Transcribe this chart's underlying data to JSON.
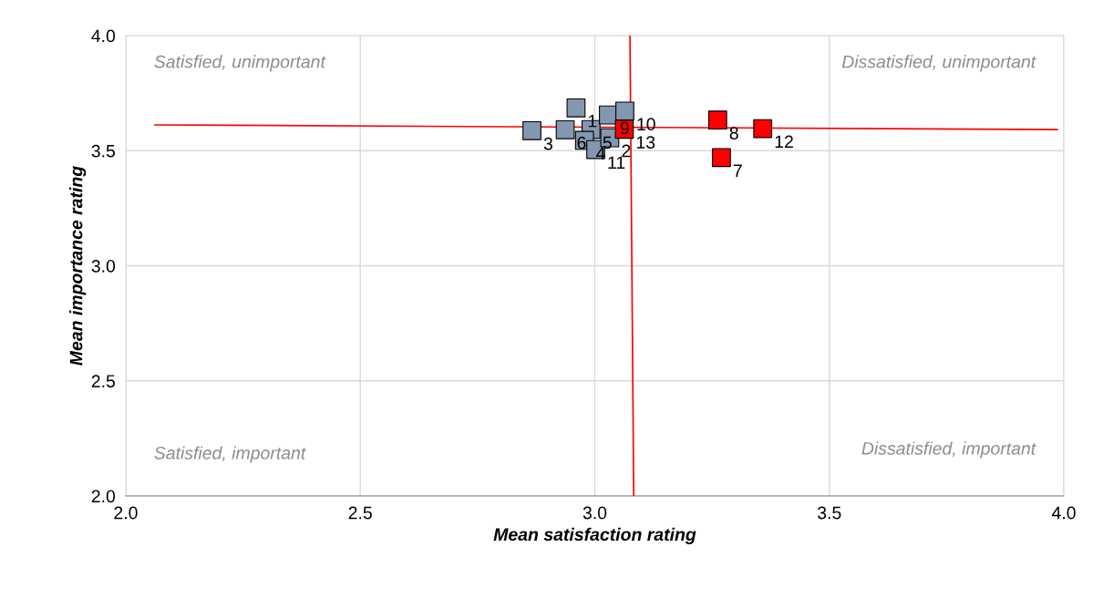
{
  "chart_data": {
    "type": "scatter",
    "xlabel": "Mean satisfaction rating",
    "ylabel": "Mean importance rating",
    "xlim": [
      2.0,
      4.0
    ],
    "xticks": [
      {
        "value": 2.0,
        "label": "2.0"
      },
      {
        "value": 2.5,
        "label": "2.5"
      },
      {
        "value": 3.0,
        "label": "3.0"
      },
      {
        "value": 3.5,
        "label": "3.5"
      },
      {
        "value": 4.0,
        "label": "4.0"
      }
    ],
    "ylim": [
      2.0,
      4.0
    ],
    "yticks": [
      {
        "value": 2.0,
        "label": "2.0"
      },
      {
        "value": 2.5,
        "label": "2.5"
      },
      {
        "value": 3.0,
        "label": "3.0"
      },
      {
        "value": 3.5,
        "label": "3.5"
      },
      {
        "value": 4.0,
        "label": "4.0"
      }
    ],
    "grid": true,
    "legend": false,
    "annotations": [
      "Satisfied, unimportant",
      "Dissatisfied, unimportant",
      "Satisfied, important",
      "Dissatisfied, important",
      {
        "text": "3",
        "x": 2.866,
        "y": 3.587
      },
      {
        "text": "6",
        "x": 2.937,
        "y": 3.591
      },
      {
        "text": "1",
        "x": 2.96,
        "y": 3.686
      },
      {
        "text": "5",
        "x": 2.992,
        "y": 3.592
      },
      {
        "text": "4",
        "x": 2.978,
        "y": 3.545
      },
      {
        "text": "11",
        "x": 3.002,
        "y": 3.505
      },
      {
        "text": "2",
        "x": 3.032,
        "y": 3.556
      },
      {
        "text": "9",
        "x": 3.029,
        "y": 3.655
      },
      {
        "text": "10",
        "x": 3.064,
        "y": 3.672
      },
      {
        "text": "13",
        "x": 3.063,
        "y": 3.593
      },
      {
        "text": "8",
        "x": 3.262,
        "y": 3.633
      },
      {
        "text": "12",
        "x": 3.358,
        "y": 3.596
      },
      {
        "text": "7",
        "x": 3.27,
        "y": 3.47
      }
    ],
    "series": [
      {
        "color": "#8497b0",
        "marker": "square",
        "x": [
          2.866,
          2.937,
          2.96,
          2.992,
          2.978,
          3.002,
          3.032,
          3.029,
          3.064
        ],
        "values": [
          3.587,
          3.591,
          3.686,
          3.592,
          3.545,
          3.505,
          3.556,
          3.655,
          3.672
        ]
      },
      {
        "color": "#ff0000",
        "marker": "square",
        "x": [
          3.063,
          3.262,
          3.358,
          3.27
        ],
        "values": [
          3.593,
          3.633,
          3.596,
          3.47
        ]
      },
      {
        "type": "line",
        "marker": "none",
        "color": "#ff0000",
        "x": [
          2.062,
          3.986
        ],
        "values": [
          3.612,
          3.592
        ]
      },
      {
        "type": "line",
        "marker": "none",
        "color": "#ff0000",
        "x": [
          3.075,
          3.083
        ],
        "values": [
          4.0,
          2.0
        ]
      }
    ]
  }
}
